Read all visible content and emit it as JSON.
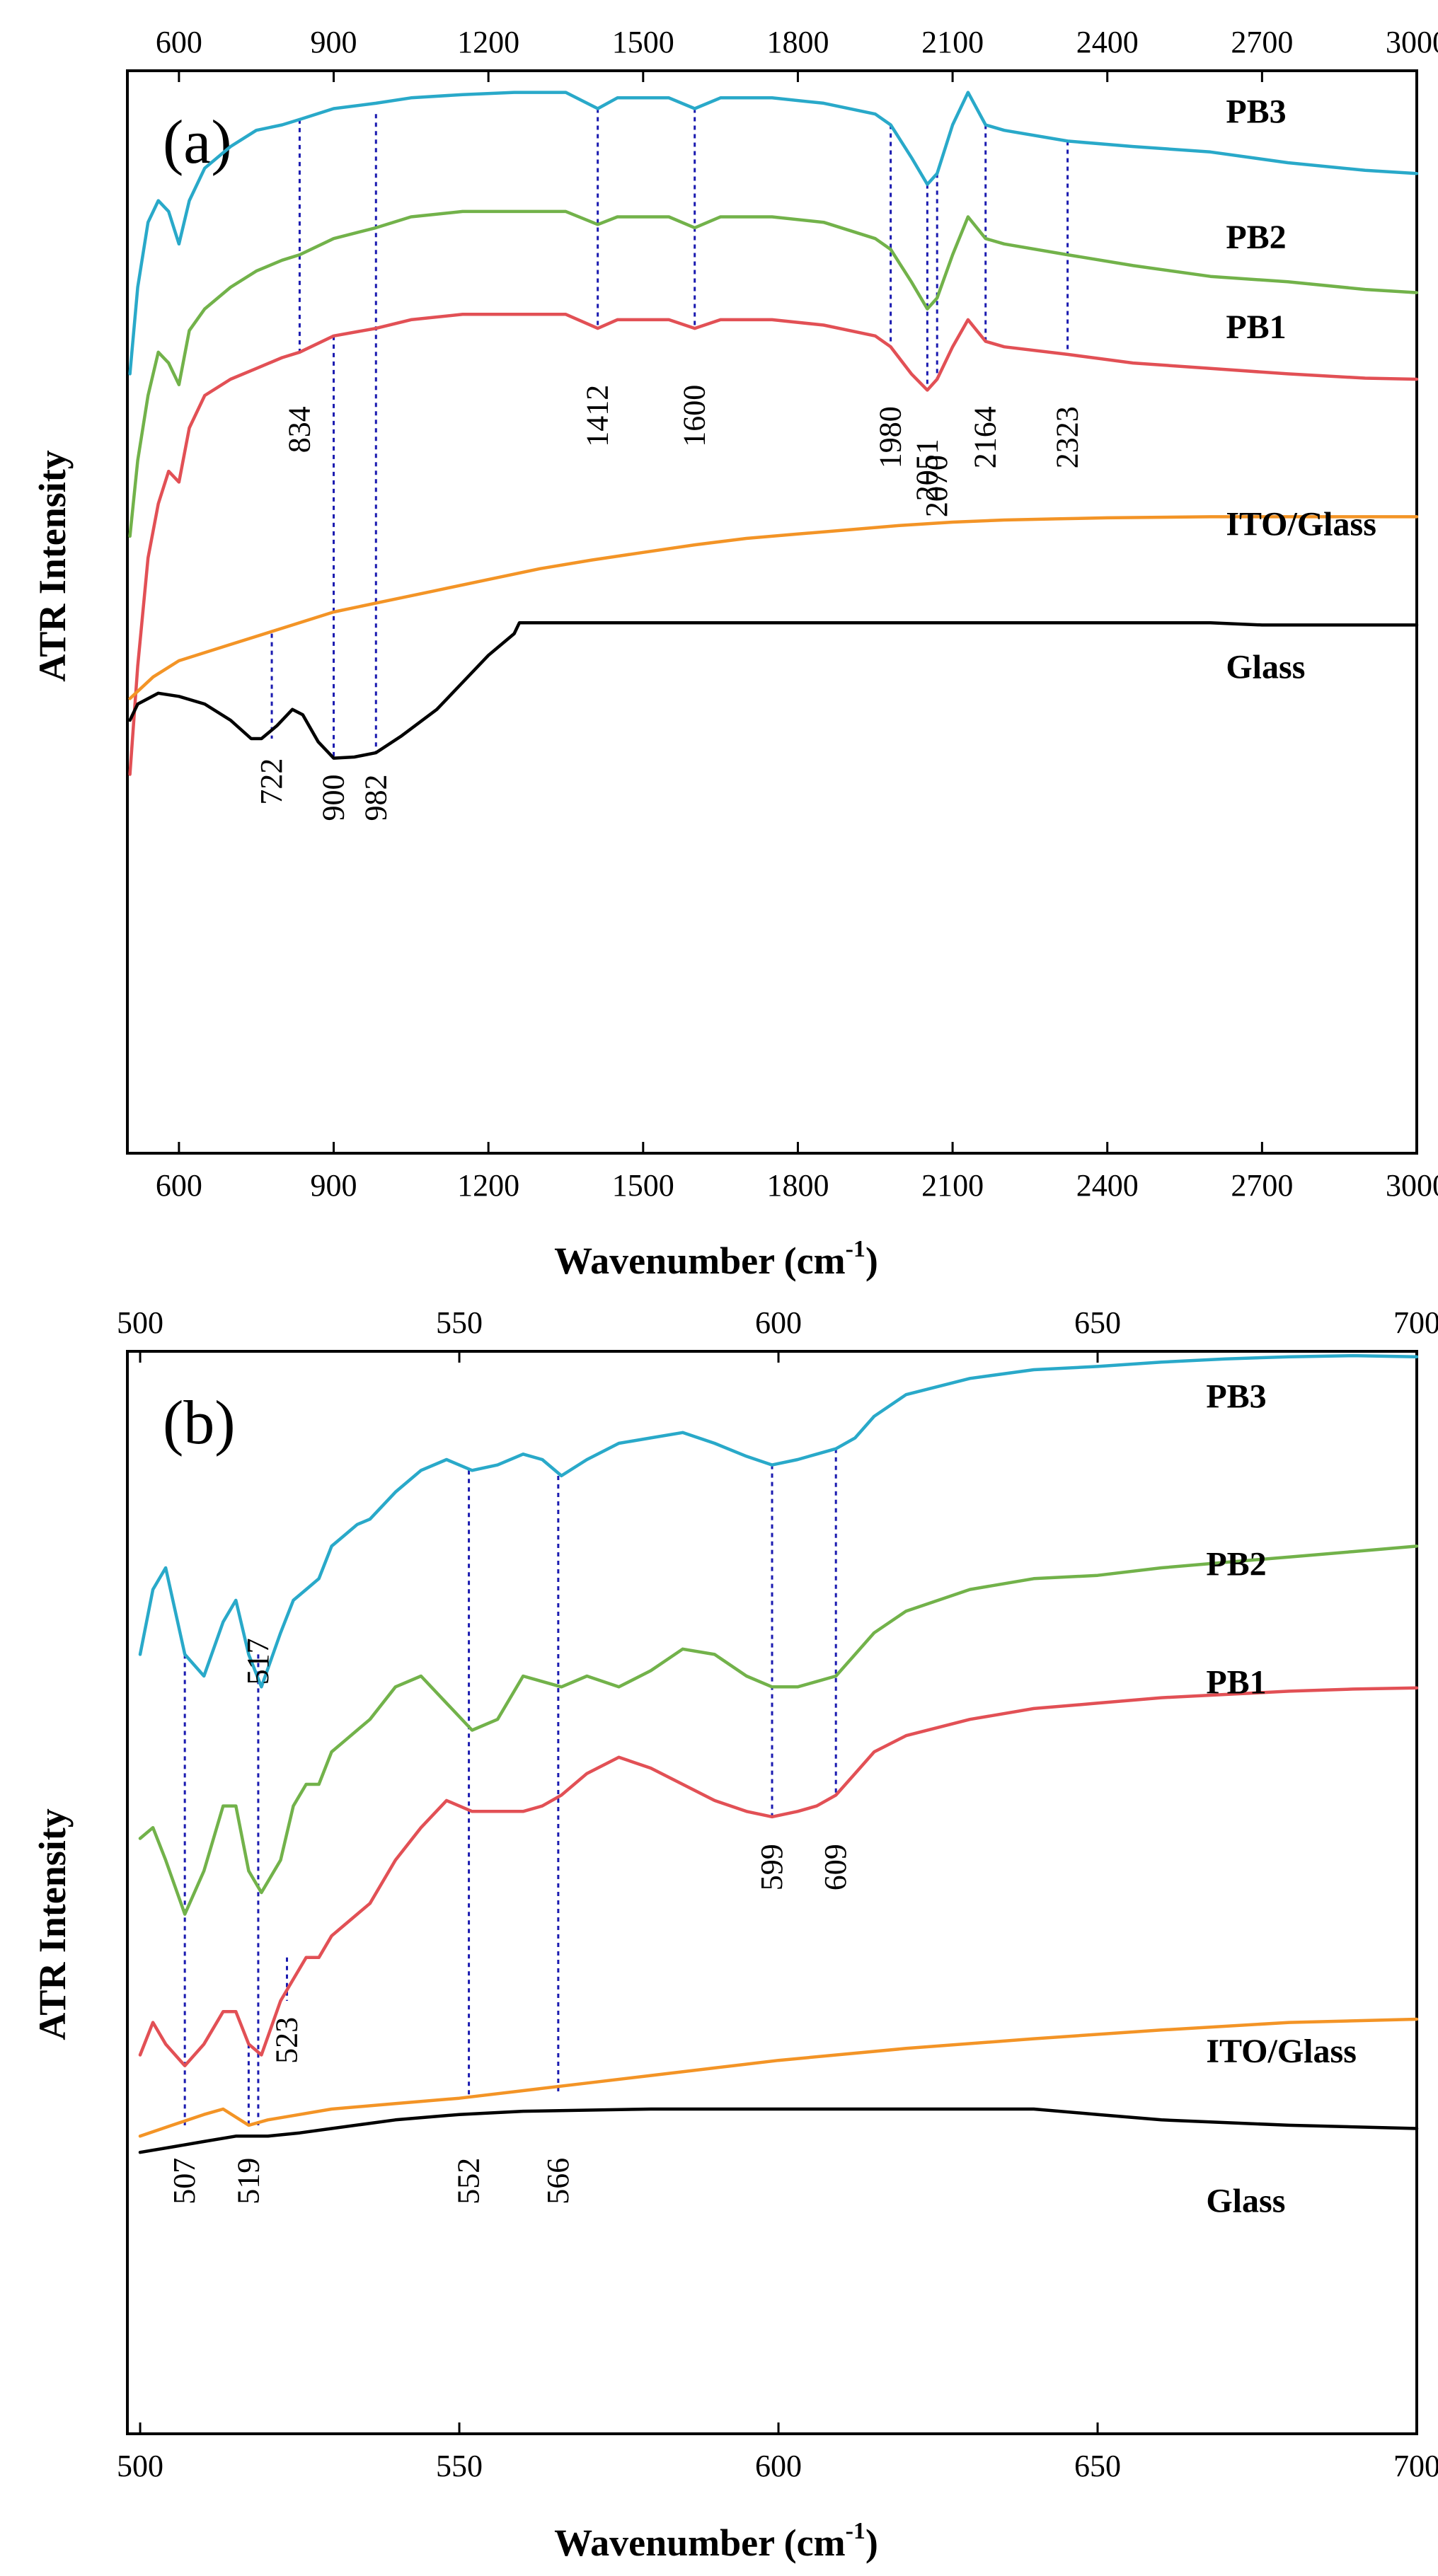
{
  "chart_data": [
    {
      "type": "line",
      "panel_label": "(a)",
      "xlabel_main": "Wavenumber (cm",
      "xlabel_sup": "-1",
      "xlabel_end": ")",
      "ylabel": "ATR Intensity",
      "xlim": [
        500,
        3000
      ],
      "ylim": [
        0,
        100
      ],
      "xticks": [
        600,
        900,
        1200,
        1500,
        1800,
        2100,
        2400,
        2700,
        3000
      ],
      "grid": false,
      "series": [
        {
          "name": "PB3",
          "label": "PB3",
          "color": "#29a9c9",
          "label_pos": [
            2630,
            95.2
          ],
          "x": [
            505,
            520,
            540,
            560,
            580,
            600,
            620,
            650,
            700,
            750,
            800,
            834,
            900,
            982,
            1050,
            1150,
            1250,
            1350,
            1412,
            1450,
            1550,
            1600,
            1650,
            1750,
            1850,
            1950,
            1980,
            2020,
            2051,
            2070,
            2100,
            2130,
            2164,
            2200,
            2323,
            2450,
            2600,
            2750,
            2900,
            3000
          ],
          "y": [
            72,
            80,
            86,
            88,
            87,
            84,
            88,
            91,
            93,
            94.5,
            95,
            95.5,
            96.5,
            97,
            97.5,
            97.8,
            98,
            98,
            96.5,
            97.5,
            97.5,
            96.5,
            97.5,
            97.5,
            97,
            96,
            95,
            92,
            89.5,
            90.5,
            95,
            98,
            95,
            94.5,
            93.5,
            93,
            92.5,
            91.5,
            90.8,
            90.5
          ]
        },
        {
          "name": "PB2",
          "label": "PB2",
          "color": "#72b24a",
          "label_pos": [
            2630,
            83.6
          ],
          "x": [
            505,
            520,
            540,
            560,
            580,
            600,
            620,
            650,
            700,
            750,
            800,
            834,
            900,
            982,
            1050,
            1150,
            1250,
            1350,
            1412,
            1450,
            1550,
            1600,
            1650,
            1750,
            1850,
            1950,
            1980,
            2020,
            2051,
            2070,
            2100,
            2130,
            2164,
            2200,
            2323,
            2450,
            2600,
            2750,
            2900,
            3000
          ],
          "y": [
            57,
            64,
            70,
            74,
            73,
            71,
            76,
            78,
            80,
            81.5,
            82.5,
            83,
            84.5,
            85.5,
            86.5,
            87,
            87,
            87,
            85.8,
            86.5,
            86.5,
            85.5,
            86.5,
            86.5,
            86,
            84.5,
            83.5,
            80.5,
            78,
            79,
            83,
            86.5,
            84.5,
            84,
            83,
            82,
            81,
            80.5,
            79.8,
            79.5
          ]
        },
        {
          "name": "PB1",
          "label": "PB1",
          "color": "#e25055",
          "label_pos": [
            2630,
            75.3
          ],
          "x": [
            505,
            520,
            540,
            560,
            580,
            600,
            620,
            650,
            700,
            750,
            800,
            834,
            900,
            982,
            1050,
            1150,
            1250,
            1350,
            1412,
            1450,
            1550,
            1600,
            1650,
            1750,
            1850,
            1950,
            1980,
            2020,
            2051,
            2070,
            2100,
            2130,
            2164,
            2200,
            2323,
            2450,
            2600,
            2750,
            2900,
            3000
          ],
          "y": [
            35,
            45,
            55,
            60,
            63,
            62,
            67,
            70,
            71.5,
            72.5,
            73.5,
            74,
            75.5,
            76.2,
            77,
            77.5,
            77.5,
            77.5,
            76.2,
            77,
            77,
            76.2,
            77,
            77,
            76.5,
            75.5,
            74.5,
            72,
            70.5,
            71.5,
            74.5,
            77,
            75,
            74.5,
            73.8,
            73,
            72.5,
            72,
            71.6,
            71.5
          ]
        },
        {
          "name": "ITO/Glass",
          "label": "ITO/Glass",
          "color": "#f39426",
          "label_pos": [
            2630,
            57.1
          ],
          "x": [
            505,
            550,
            600,
            700,
            800,
            900,
            1000,
            1100,
            1200,
            1300,
            1400,
            1500,
            1600,
            1700,
            1800,
            1900,
            2000,
            2100,
            2200,
            2300,
            2400,
            2600,
            2800,
            3000
          ],
          "y": [
            42,
            44,
            45.5,
            47,
            48.5,
            50,
            51,
            52,
            53,
            54,
            54.8,
            55.5,
            56.2,
            56.8,
            57.2,
            57.6,
            58,
            58.3,
            58.5,
            58.6,
            58.7,
            58.8,
            58.8,
            58.8
          ]
        },
        {
          "name": "Glass",
          "label": "Glass",
          "color": "#000000",
          "label_pos": [
            2630,
            43.9
          ],
          "x": [
            505,
            520,
            560,
            600,
            650,
            700,
            740,
            760,
            790,
            820,
            840,
            870,
            900,
            940,
            982,
            1030,
            1100,
            1150,
            1200,
            1250,
            1260,
            1400,
            1800,
            2200,
            2600,
            2700,
            2800,
            3000
          ],
          "y": [
            40,
            41.5,
            42.5,
            42.2,
            41.5,
            40,
            38.3,
            38.3,
            39.5,
            41,
            40.5,
            38,
            36.5,
            36.6,
            37,
            38.5,
            41,
            43.5,
            46,
            48,
            49,
            49,
            49,
            49,
            49,
            48.8,
            48.8,
            48.8
          ]
        }
      ],
      "annotations": [
        {
          "label": "834",
          "x": 834,
          "y_top": 95.5,
          "y_bottom": 74,
          "label_y": 69,
          "color": "#1b1bb0"
        },
        {
          "label": "1412",
          "x": 1412,
          "y_top": 96.5,
          "y_bottom": 76.2,
          "label_y": 71,
          "color": "#1b1bb0"
        },
        {
          "label": "1600",
          "x": 1600,
          "y_top": 96.5,
          "y_bottom": 76.2,
          "label_y": 71,
          "color": "#1b1bb0"
        },
        {
          "label": "1980",
          "x": 1980,
          "y_top": 95,
          "y_bottom": 74.5,
          "label_y": 69,
          "color": "#1b1bb0"
        },
        {
          "label": "2051",
          "x": 2051,
          "y_top": 89.5,
          "y_bottom": 70.5,
          "label_y": 66,
          "color": "#1b1bb0"
        },
        {
          "label": "2070",
          "x": 2070,
          "y_top": 90.5,
          "y_bottom": 71.5,
          "label_y": 64.5,
          "color": "#1b1bb0"
        },
        {
          "label": "2164",
          "x": 2164,
          "y_top": 95,
          "y_bottom": 75,
          "label_y": 69,
          "color": "#1b1bb0"
        },
        {
          "label": "2323",
          "x": 2323,
          "y_top": 93.5,
          "y_bottom": 73.8,
          "label_y": 69,
          "color": "#1b1bb0"
        },
        {
          "label": "722",
          "x": 780,
          "y_top": 48,
          "y_bottom": 38.3,
          "label_y": 36.5,
          "color": "#1b1bb0"
        },
        {
          "label": "900",
          "x": 900,
          "y_top": 75.5,
          "y_bottom": 36.5,
          "label_y": 35,
          "color": "#1b1bb0"
        },
        {
          "label": "982",
          "x": 982,
          "y_top": 96,
          "y_bottom": 37,
          "label_y": 35,
          "color": "#1b1bb0"
        }
      ]
    },
    {
      "type": "line",
      "panel_label": "(b)",
      "xlabel_main": "Wavenumber (cm",
      "xlabel_sup": "-1",
      "xlabel_end": ")",
      "ylabel": "ATR Intensity",
      "xlim": [
        498,
        700
      ],
      "ylim": [
        0,
        100
      ],
      "xticks": [
        500,
        550,
        600,
        650,
        700
      ],
      "grid": false,
      "series": [
        {
          "name": "PB3",
          "label": "PB3",
          "color": "#29a9c9",
          "label_pos": [
            667,
            94.8
          ],
          "x": [
            500,
            502,
            504,
            507,
            510,
            513,
            515,
            517,
            519,
            522,
            524,
            526,
            528,
            530,
            532,
            534,
            536,
            540,
            544,
            548,
            552,
            556,
            560,
            563,
            566,
            570,
            575,
            580,
            585,
            590,
            595,
            599,
            603,
            606,
            609,
            612,
            615,
            620,
            630,
            640,
            650,
            660,
            670,
            680,
            690,
            700
          ],
          "y": [
            72,
            78,
            80,
            72,
            70,
            75,
            77,
            72,
            69,
            74,
            77,
            78,
            79,
            82,
            83,
            84,
            84.5,
            87,
            89,
            90,
            89,
            89.5,
            90.5,
            90,
            88.5,
            90,
            91.5,
            92,
            92.5,
            91.5,
            90.3,
            89.5,
            90,
            90.5,
            91,
            92,
            94,
            96,
            97.5,
            98.3,
            98.6,
            99,
            99.3,
            99.5,
            99.6,
            99.5
          ]
        },
        {
          "name": "PB2",
          "label": "PB2",
          "color": "#72b24a",
          "label_pos": [
            667,
            79.3
          ],
          "x": [
            500,
            502,
            504,
            507,
            510,
            513,
            515,
            517,
            519,
            522,
            524,
            526,
            528,
            530,
            532,
            534,
            536,
            540,
            544,
            548,
            552,
            556,
            560,
            563,
            566,
            570,
            575,
            580,
            585,
            590,
            595,
            599,
            603,
            606,
            609,
            612,
            615,
            620,
            630,
            640,
            650,
            660,
            670,
            680,
            690,
            700
          ],
          "y": [
            55,
            56,
            53,
            48,
            52,
            58,
            58,
            52,
            50,
            53,
            58,
            60,
            60,
            63,
            64,
            65,
            66,
            69,
            70,
            67.5,
            65,
            66,
            70,
            69.5,
            69,
            70,
            69,
            70.5,
            72.5,
            72,
            70,
            69,
            69,
            69.5,
            70,
            72,
            74,
            76,
            78,
            79,
            79.3,
            80,
            80.5,
            81,
            81.5,
            82
          ]
        },
        {
          "name": "PB1",
          "label": "PB1",
          "color": "#e25055",
          "label_pos": [
            667,
            68.4
          ],
          "x": [
            500,
            502,
            504,
            507,
            510,
            513,
            515,
            517,
            519,
            522,
            524,
            526,
            528,
            530,
            532,
            534,
            536,
            540,
            544,
            548,
            552,
            556,
            560,
            563,
            566,
            570,
            575,
            580,
            585,
            590,
            595,
            599,
            603,
            606,
            609,
            612,
            615,
            620,
            630,
            640,
            650,
            660,
            670,
            680,
            690,
            700
          ],
          "y": [
            35,
            38,
            36,
            34,
            36,
            39,
            39,
            36,
            35,
            40,
            42,
            44,
            44,
            46,
            47,
            48,
            49,
            53,
            56,
            58.5,
            57.5,
            57.5,
            57.5,
            58,
            59,
            61,
            62.5,
            61.5,
            60,
            58.5,
            57.5,
            57,
            57.5,
            58,
            59,
            61,
            63,
            64.5,
            66,
            67,
            67.5,
            68,
            68.3,
            68.6,
            68.8,
            68.9
          ]
        },
        {
          "name": "ITO/Glass",
          "label": "ITO/Glass",
          "color": "#f39426",
          "label_pos": [
            667,
            34.3
          ],
          "x": [
            500,
            505,
            510,
            513,
            517,
            520,
            525,
            530,
            540,
            550,
            560,
            570,
            580,
            590,
            600,
            620,
            640,
            660,
            680,
            700
          ],
          "y": [
            27.5,
            28.5,
            29.5,
            30,
            28.5,
            29,
            29.5,
            30,
            30.5,
            31,
            31.7,
            32.4,
            33.1,
            33.8,
            34.5,
            35.6,
            36.5,
            37.3,
            38,
            38.3
          ]
        },
        {
          "name": "Glass",
          "label": "Glass",
          "color": "#000000",
          "label_pos": [
            667,
            20.5
          ],
          "x": [
            500,
            505,
            510,
            515,
            520,
            525,
            530,
            540,
            550,
            560,
            580,
            600,
            620,
            640,
            650,
            660,
            680,
            700
          ],
          "y": [
            26,
            26.5,
            27,
            27.5,
            27.5,
            27.8,
            28.2,
            29,
            29.5,
            29.8,
            30,
            30,
            30,
            30,
            29.5,
            29,
            28.5,
            28.2
          ]
        }
      ],
      "annotations": [
        {
          "label": "517",
          "x": 518.5,
          "y_top": 72,
          "y_bottom": 28.5,
          "label_y": 73.5,
          "color": "#1b1bb0"
        },
        {
          "label": "507",
          "x": 507,
          "y_top": 72,
          "y_bottom": 28.5,
          "label_y": 25.5,
          "color": "#1b1bb0"
        },
        {
          "label": "519",
          "x": 517,
          "y_top": 36,
          "y_bottom": 28.5,
          "label_y": 25.5,
          "color": "#1b1bb0"
        },
        {
          "label": "523",
          "x": 523,
          "y_top": 44,
          "y_bottom": 40,
          "label_y": 38.5,
          "color": "#1b1bb0"
        },
        {
          "label": "552",
          "x": 551.5,
          "y_top": 89,
          "y_bottom": 31,
          "label_y": 25.5,
          "color": "#1b1bb0"
        },
        {
          "label": "566",
          "x": 565.5,
          "y_top": 88.5,
          "y_bottom": 31.5,
          "label_y": 25.5,
          "color": "#1b1bb0"
        },
        {
          "label": "599",
          "x": 599,
          "y_top": 89.5,
          "y_bottom": 57,
          "label_y": 54.5,
          "color": "#1b1bb0"
        },
        {
          "label": "609",
          "x": 609,
          "y_top": 91,
          "y_bottom": 59,
          "label_y": 54.5,
          "color": "#1b1bb0"
        }
      ]
    }
  ]
}
